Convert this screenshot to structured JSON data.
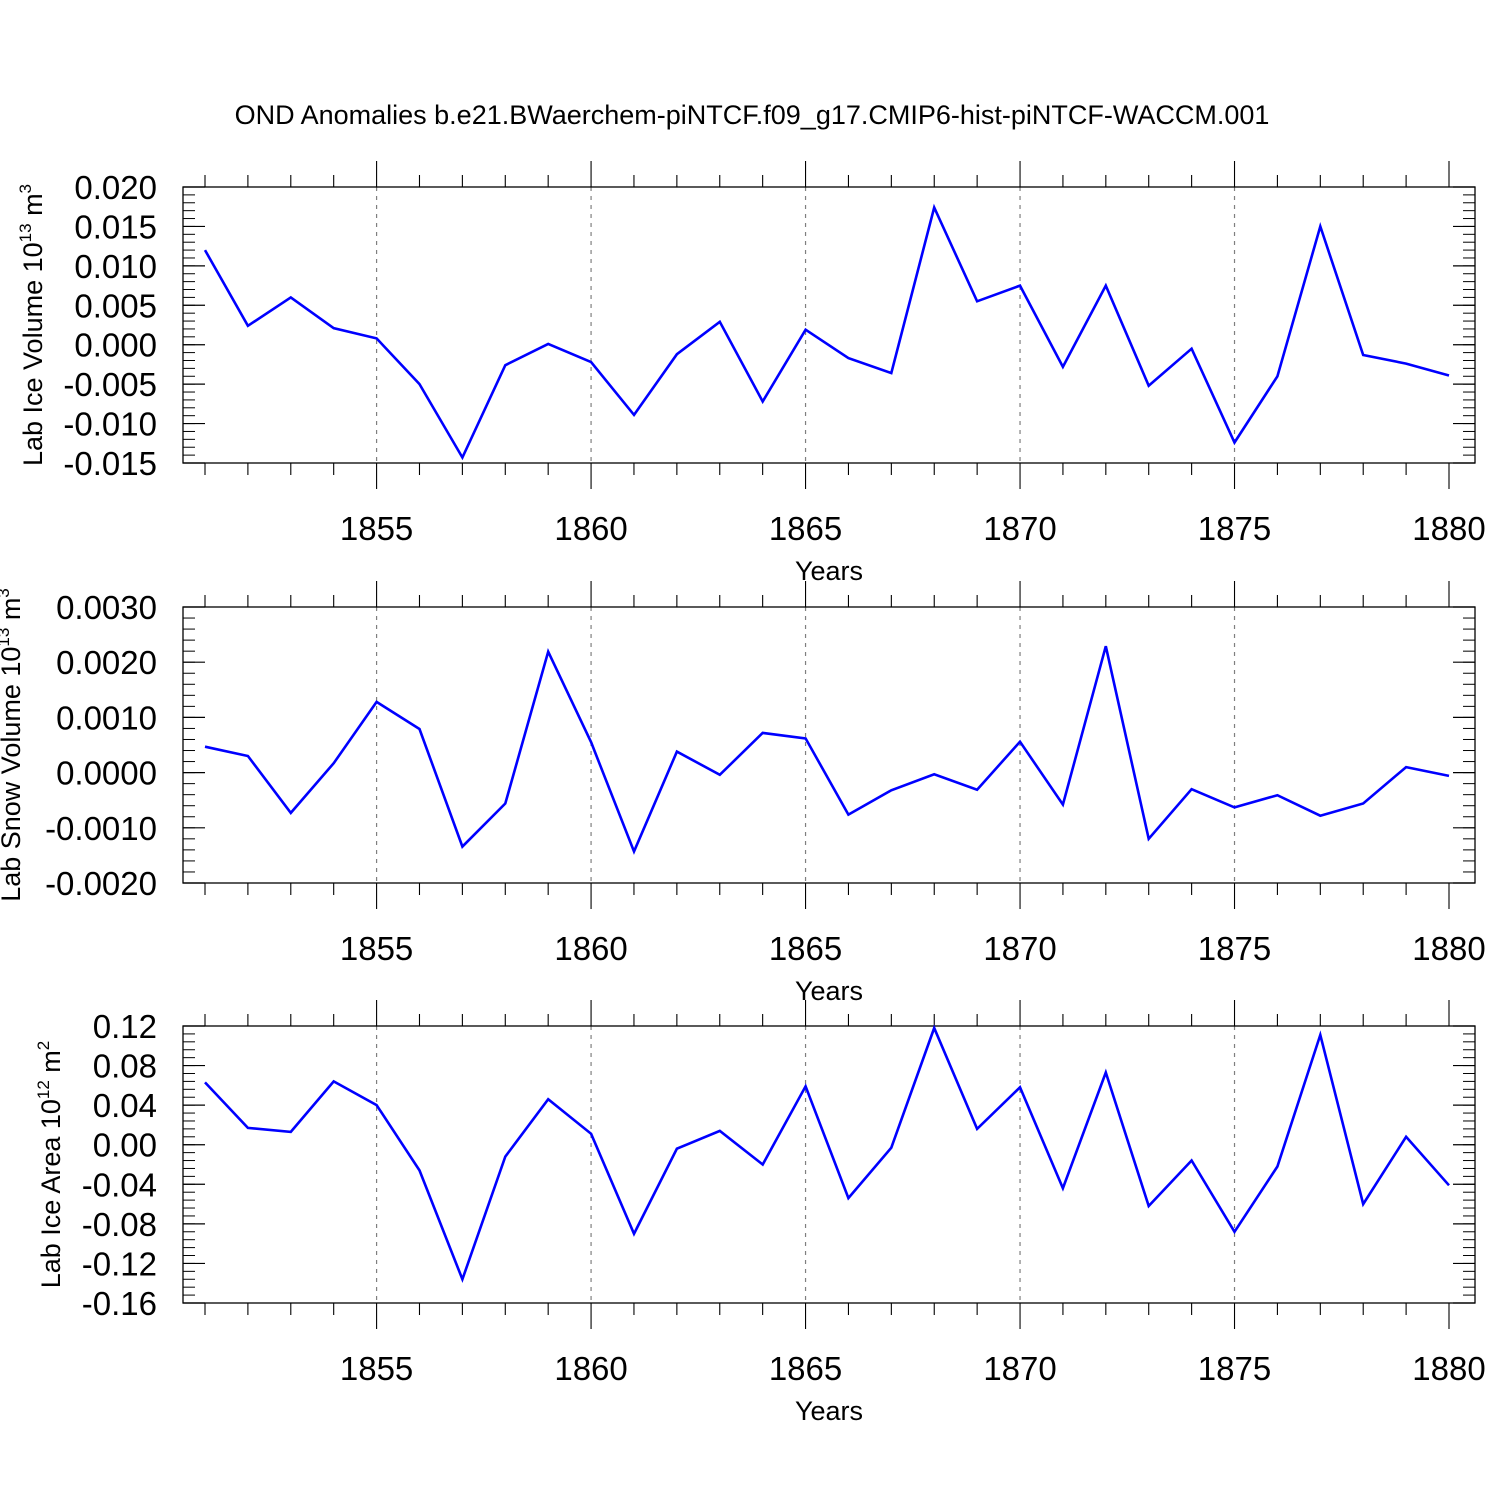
{
  "title": "OND Anomalies b.e21.BWaerchem-piNTCF.f09_g17.CMIP6-hist-piNTCF-WACCM.001",
  "colors": {
    "line": "#0000ff",
    "axis": "#000000",
    "grid": "#7f7f7f"
  },
  "chart_data": [
    {
      "type": "line",
      "name": "ice-volume",
      "ylabel": "Lab Ice Volume 10",
      "ylabel_exp": "13",
      "ylabel_unit": " m",
      "ylabel_unit_exp": "3",
      "xlabel": "Years",
      "xlim": [
        1851,
        1880
      ],
      "ylim": [
        -0.015,
        0.02
      ],
      "yticks": [
        -0.015,
        -0.01,
        -0.005,
        0.0,
        0.005,
        0.01,
        0.015,
        0.02
      ],
      "ytick_labels": [
        "-0.015",
        "-0.010",
        "-0.005",
        "0.000",
        "0.005",
        "0.010",
        "0.015",
        "0.020"
      ],
      "yminor_step": 0.001,
      "xticks": [
        1855,
        1860,
        1865,
        1870,
        1875,
        1880
      ],
      "xtick_labels": [
        "1855",
        "1860",
        "1865",
        "1870",
        "1875",
        "1880"
      ],
      "x": [
        1851,
        1852,
        1853,
        1854,
        1855,
        1856,
        1857,
        1858,
        1859,
        1860,
        1861,
        1862,
        1863,
        1864,
        1865,
        1866,
        1867,
        1868,
        1869,
        1870,
        1871,
        1872,
        1873,
        1874,
        1875,
        1876,
        1877,
        1878,
        1879,
        1880
      ],
      "values": [
        0.012,
        0.0024,
        0.006,
        0.0021,
        0.0008,
        -0.005,
        -0.0143,
        -0.0026,
        0.0001,
        -0.0022,
        -0.0089,
        -0.0012,
        0.0029,
        -0.0072,
        0.0019,
        -0.0017,
        -0.0036,
        0.0174,
        0.0055,
        0.0075,
        -0.0028,
        0.0075,
        -0.0052,
        -0.0005,
        -0.0124,
        -0.004,
        0.015,
        -0.0013,
        -0.0024,
        -0.0039
      ]
    },
    {
      "type": "line",
      "name": "snow-volume",
      "ylabel": "Lab Snow Volume 10",
      "ylabel_exp": "13",
      "ylabel_unit": " m",
      "ylabel_unit_exp": "3",
      "xlabel": "Years",
      "xlim": [
        1851,
        1880
      ],
      "ylim": [
        -0.002,
        0.003
      ],
      "yticks": [
        -0.002,
        -0.001,
        0.0,
        0.001,
        0.002,
        0.003
      ],
      "ytick_labels": [
        "-0.0020",
        "-0.0010",
        "0.0000",
        "0.0010",
        "0.0020",
        "0.0030"
      ],
      "yminor_step": 0.0002,
      "xticks": [
        1855,
        1860,
        1865,
        1870,
        1875,
        1880
      ],
      "xtick_labels": [
        "1855",
        "1860",
        "1865",
        "1870",
        "1875",
        "1880"
      ],
      "x": [
        1851,
        1852,
        1853,
        1854,
        1855,
        1856,
        1857,
        1858,
        1859,
        1860,
        1861,
        1862,
        1863,
        1864,
        1865,
        1866,
        1867,
        1868,
        1869,
        1870,
        1871,
        1872,
        1873,
        1874,
        1875,
        1876,
        1877,
        1878,
        1879,
        1880
      ],
      "values": [
        0.00047,
        0.0003,
        -0.00073,
        0.00017,
        0.00128,
        0.00079,
        -0.00134,
        -0.00056,
        0.00219,
        0.00055,
        -0.00143,
        0.00038,
        -4e-05,
        0.00072,
        0.00062,
        -0.00076,
        -0.00032,
        -3e-05,
        -0.00031,
        0.00056,
        -0.00058,
        0.00229,
        -0.0012,
        -0.0003,
        -0.00063,
        -0.00041,
        -0.00078,
        -0.00056,
        0.0001,
        -6e-05
      ]
    },
    {
      "type": "line",
      "name": "ice-area",
      "ylabel": "Lab Ice Area 10",
      "ylabel_exp": "12",
      "ylabel_unit": " m",
      "ylabel_unit_exp": "2",
      "xlabel": "Years",
      "xlim": [
        1851,
        1880
      ],
      "ylim": [
        -0.16,
        0.12
      ],
      "yticks": [
        -0.16,
        -0.12,
        -0.08,
        -0.04,
        0.0,
        0.04,
        0.08,
        0.12
      ],
      "ytick_labels": [
        "-0.16",
        "-0.12",
        "-0.08",
        "-0.04",
        "0.00",
        "0.04",
        "0.08",
        "0.12"
      ],
      "yminor_step": 0.008,
      "xticks": [
        1855,
        1860,
        1865,
        1870,
        1875,
        1880
      ],
      "xtick_labels": [
        "1855",
        "1860",
        "1865",
        "1870",
        "1875",
        "1880"
      ],
      "x": [
        1851,
        1852,
        1853,
        1854,
        1855,
        1856,
        1857,
        1858,
        1859,
        1860,
        1861,
        1862,
        1863,
        1864,
        1865,
        1866,
        1867,
        1868,
        1869,
        1870,
        1871,
        1872,
        1873,
        1874,
        1875,
        1876,
        1877,
        1878,
        1879,
        1880
      ],
      "values": [
        0.063,
        0.017,
        0.013,
        0.064,
        0.04,
        -0.026,
        -0.136,
        -0.012,
        0.046,
        0.011,
        -0.09,
        -0.004,
        0.014,
        -0.02,
        0.059,
        -0.054,
        -0.003,
        0.118,
        0.016,
        0.058,
        -0.044,
        0.073,
        -0.062,
        -0.016,
        -0.088,
        -0.022,
        0.111,
        -0.06,
        0.008,
        -0.041
      ]
    }
  ]
}
